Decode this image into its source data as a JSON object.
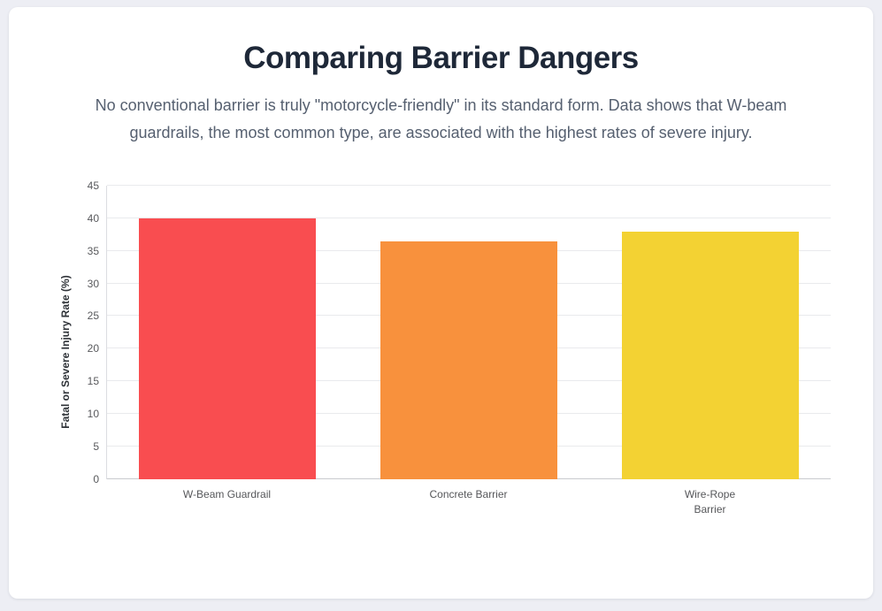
{
  "header": {
    "title": "Comparing Barrier Dangers",
    "subtitle": "No conventional barrier is truly \"motorcycle-friendly\" in its standard form. Data shows that W-beam guardrails, the most common type, are associated with the highest rates of severe injury."
  },
  "chart_data": {
    "type": "bar",
    "title": "Comparing Barrier Dangers",
    "categories": [
      "W-Beam Guardrail",
      "Concrete Barrier",
      "Wire-Rope\nBarrier"
    ],
    "values": [
      40,
      36.5,
      38
    ],
    "bar_colors": [
      "#f94d50",
      "#f8913d",
      "#f3d233"
    ],
    "xlabel": "",
    "ylabel": "Fatal or Severe Injury Rate (%)",
    "ylim": [
      0,
      45
    ],
    "ytick_step": 5,
    "grid": true,
    "legend": false
  },
  "theme": {
    "page_bg": "#edeef4",
    "card_bg": "#ffffff",
    "title_color": "#1e2838",
    "subtitle_color": "#566070",
    "grid_color": "#e9eaed",
    "axis_color": "#c9cace",
    "tick_color": "#58595c"
  }
}
